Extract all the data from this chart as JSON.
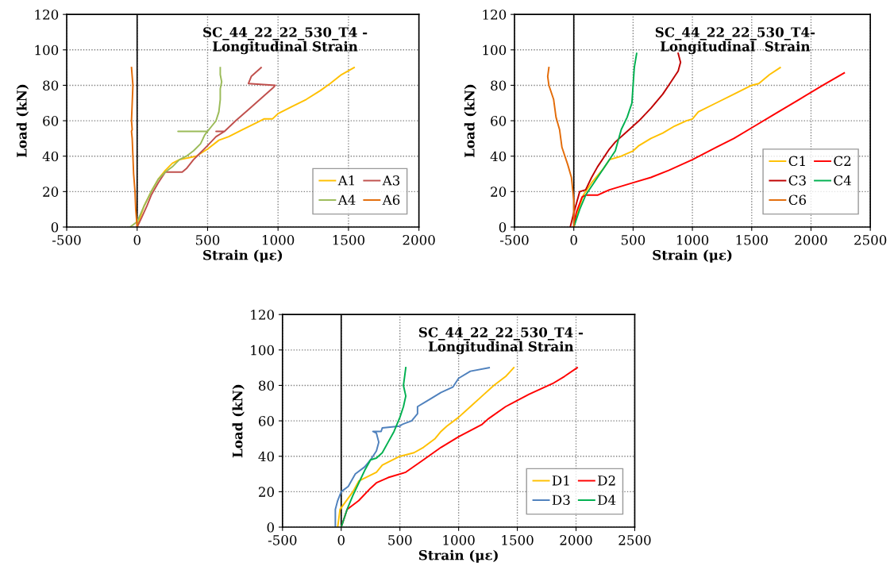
{
  "chart_data": [
    {
      "type": "line",
      "title": "SC_44_22_22_530_T4 -\nLongitudinal Strain",
      "xlabel": "Strain (με)",
      "ylabel": "Load (kN)",
      "xlim": [
        -500,
        2000
      ],
      "xticks": [
        -500,
        0,
        500,
        1000,
        1500,
        2000
      ],
      "ylim": [
        0,
        120
      ],
      "yticks": [
        0,
        20,
        40,
        60,
        80,
        100,
        120
      ],
      "grid": true,
      "legend": "right",
      "ref_lines": [
        {
          "axis": "x",
          "value": 0,
          "color": "#000000"
        }
      ],
      "series": [
        {
          "name": "A1",
          "color": "#ffc000",
          "x": [
            0,
            20,
            50,
            100,
            150,
            200,
            250,
            300,
            420,
            500,
            580,
            650,
            750,
            850,
            900,
            960,
            1000,
            1100,
            1200,
            1300,
            1370,
            1450,
            1540
          ],
          "values": [
            0,
            5,
            12,
            20,
            27,
            32,
            36,
            38,
            40,
            44,
            49,
            51,
            55,
            59,
            61,
            61,
            64,
            68,
            72,
            77,
            81,
            86,
            90
          ]
        },
        {
          "name": "A3",
          "color": "#c0504d",
          "x": [
            0,
            30,
            70,
            100,
            150,
            200,
            320,
            350,
            400,
            450,
            500,
            560,
            620,
            560,
            620,
            700,
            800,
            900,
            970,
            980,
            790,
            810,
            880
          ],
          "values": [
            0,
            5,
            12,
            18,
            25,
            31,
            31,
            33,
            38,
            42,
            46,
            51,
            54,
            54,
            54,
            60,
            67,
            74,
            79,
            80,
            81,
            85,
            90
          ]
        },
        {
          "name": "A4",
          "color": "#9bbb59",
          "x": [
            -50,
            0,
            50,
            100,
            150,
            200,
            250,
            300,
            350,
            400,
            450,
            480,
            500,
            290,
            500,
            530,
            560,
            580,
            590,
            590,
            600,
            590,
            590
          ],
          "values": [
            0,
            3,
            12,
            20,
            27,
            31,
            34,
            38,
            40,
            43,
            47,
            52,
            54,
            54,
            54,
            57,
            60,
            65,
            72,
            78,
            82,
            86,
            90
          ]
        },
        {
          "name": "A6",
          "color": "#e36c09",
          "x": [
            0,
            -10,
            -15,
            -25,
            -30,
            -35,
            -40,
            -35,
            -40,
            -35,
            -30,
            -40
          ],
          "values": [
            0,
            10,
            20,
            30,
            40,
            50,
            54,
            55,
            60,
            70,
            80,
            90
          ]
        }
      ]
    },
    {
      "type": "line",
      "title": "SC_44_22_22_530_T4-\nLongitudinal  Strain",
      "xlabel": "Strain (με)",
      "ylabel": "Load (kN)",
      "xlim": [
        -500,
        2500
      ],
      "xticks": [
        -500,
        0,
        500,
        1000,
        1500,
        2000,
        2500
      ],
      "ylim": [
        0,
        120
      ],
      "yticks": [
        0,
        20,
        40,
        60,
        80,
        100,
        120
      ],
      "grid": true,
      "legend": "right",
      "ref_lines": [
        {
          "axis": "x",
          "value": 0,
          "color": "#000000"
        }
      ],
      "series": [
        {
          "name": "C1",
          "color": "#ffc000",
          "x": [
            0,
            30,
            80,
            150,
            250,
            300,
            400,
            500,
            550,
            650,
            750,
            850,
            950,
            1000,
            1050,
            1200,
            1350,
            1500,
            1560,
            1650,
            1740
          ],
          "values": [
            0,
            8,
            18,
            25,
            33,
            38,
            40,
            43,
            46,
            50,
            53,
            57,
            60,
            61,
            65,
            70,
            75,
            80,
            81,
            86,
            90
          ]
        },
        {
          "name": "C2",
          "color": "#ff0000",
          "x": [
            0,
            20,
            70,
            100,
            200,
            300,
            400,
            500,
            650,
            800,
            1000,
            1200,
            1350,
            1500,
            1700,
            1900,
            2100,
            2280
          ],
          "values": [
            0,
            8,
            17,
            18,
            18,
            21,
            23,
            25,
            28,
            32,
            38,
            45,
            50,
            56,
            64,
            72,
            80,
            87
          ]
        },
        {
          "name": "C3",
          "color": "#c00000",
          "x": [
            -30,
            0,
            50,
            100,
            150,
            200,
            250,
            300,
            350,
            450,
            550,
            650,
            750,
            800,
            880,
            900,
            880
          ],
          "values": [
            0,
            8,
            20,
            21,
            28,
            34,
            39,
            44,
            48,
            54,
            60,
            67,
            75,
            80,
            88,
            93,
            98
          ]
        },
        {
          "name": "C4",
          "color": "#00b050",
          "x": [
            0,
            50,
            100,
            200,
            300,
            350,
            400,
            450,
            490,
            500,
            510,
            530
          ],
          "values": [
            0,
            10,
            18,
            28,
            38,
            43,
            55,
            62,
            70,
            80,
            90,
            98
          ]
        },
        {
          "name": "C6",
          "color": "#e36c09",
          "x": [
            0,
            0,
            -20,
            -50,
            -100,
            -120,
            -150,
            -170,
            -210,
            -220,
            -210
          ],
          "values": [
            0,
            15,
            28,
            35,
            45,
            55,
            62,
            72,
            80,
            85,
            90
          ]
        }
      ]
    },
    {
      "type": "line",
      "title": "SC_44_22_22_530_T4 -\nLongitudinal Strain",
      "xlabel": "Strain (με)",
      "ylabel": "Load (kN)",
      "xlim": [
        -500,
        2500
      ],
      "xticks": [
        -500,
        0,
        500,
        1000,
        1500,
        2000,
        2500
      ],
      "ylim": [
        0,
        120
      ],
      "yticks": [
        0,
        20,
        40,
        60,
        80,
        100,
        120
      ],
      "grid": true,
      "legend": "right",
      "ref_lines": [
        {
          "axis": "x",
          "value": 0,
          "color": "#000000"
        }
      ],
      "series": [
        {
          "name": "D1",
          "color": "#ffc000",
          "x": [
            -30,
            -10,
            100,
            150,
            300,
            350,
            500,
            620,
            700,
            800,
            850,
            900,
            1000,
            1100,
            1200,
            1300,
            1400,
            1470
          ],
          "values": [
            0,
            10,
            20,
            26,
            31,
            35,
            40,
            42,
            45,
            50,
            54,
            57,
            62,
            68,
            74,
            80,
            85,
            90
          ]
        },
        {
          "name": "D2",
          "color": "#ff0000",
          "x": [
            0,
            50,
            150,
            250,
            300,
            400,
            550,
            700,
            850,
            1000,
            1200,
            1250,
            1400,
            1600,
            1800,
            1900,
            2010
          ],
          "values": [
            0,
            10,
            15,
            22,
            25,
            28,
            31,
            38,
            45,
            51,
            58,
            61,
            68,
            75,
            81,
            85,
            90
          ]
        },
        {
          "name": "D3",
          "color": "#4f81bd",
          "x": [
            -50,
            -50,
            -30,
            0,
            60,
            120,
            200,
            250,
            300,
            320,
            300,
            270,
            340,
            350,
            500,
            520,
            600,
            650,
            650,
            750,
            850,
            950,
            970,
            1000,
            1100,
            1260
          ],
          "values": [
            0,
            10,
            15,
            20,
            23,
            30,
            34,
            38,
            43,
            48,
            53,
            54,
            54,
            56,
            57,
            58,
            60,
            64,
            68,
            72,
            76,
            79,
            81,
            84,
            88,
            90
          ]
        },
        {
          "name": "D4",
          "color": "#00b050",
          "x": [
            0,
            50,
            100,
            150,
            200,
            250,
            300,
            350,
            400,
            450,
            500,
            530,
            550,
            530,
            540,
            550
          ],
          "values": [
            0,
            10,
            18,
            25,
            32,
            38,
            39,
            42,
            48,
            54,
            62,
            68,
            74,
            80,
            85,
            90
          ]
        }
      ]
    }
  ]
}
